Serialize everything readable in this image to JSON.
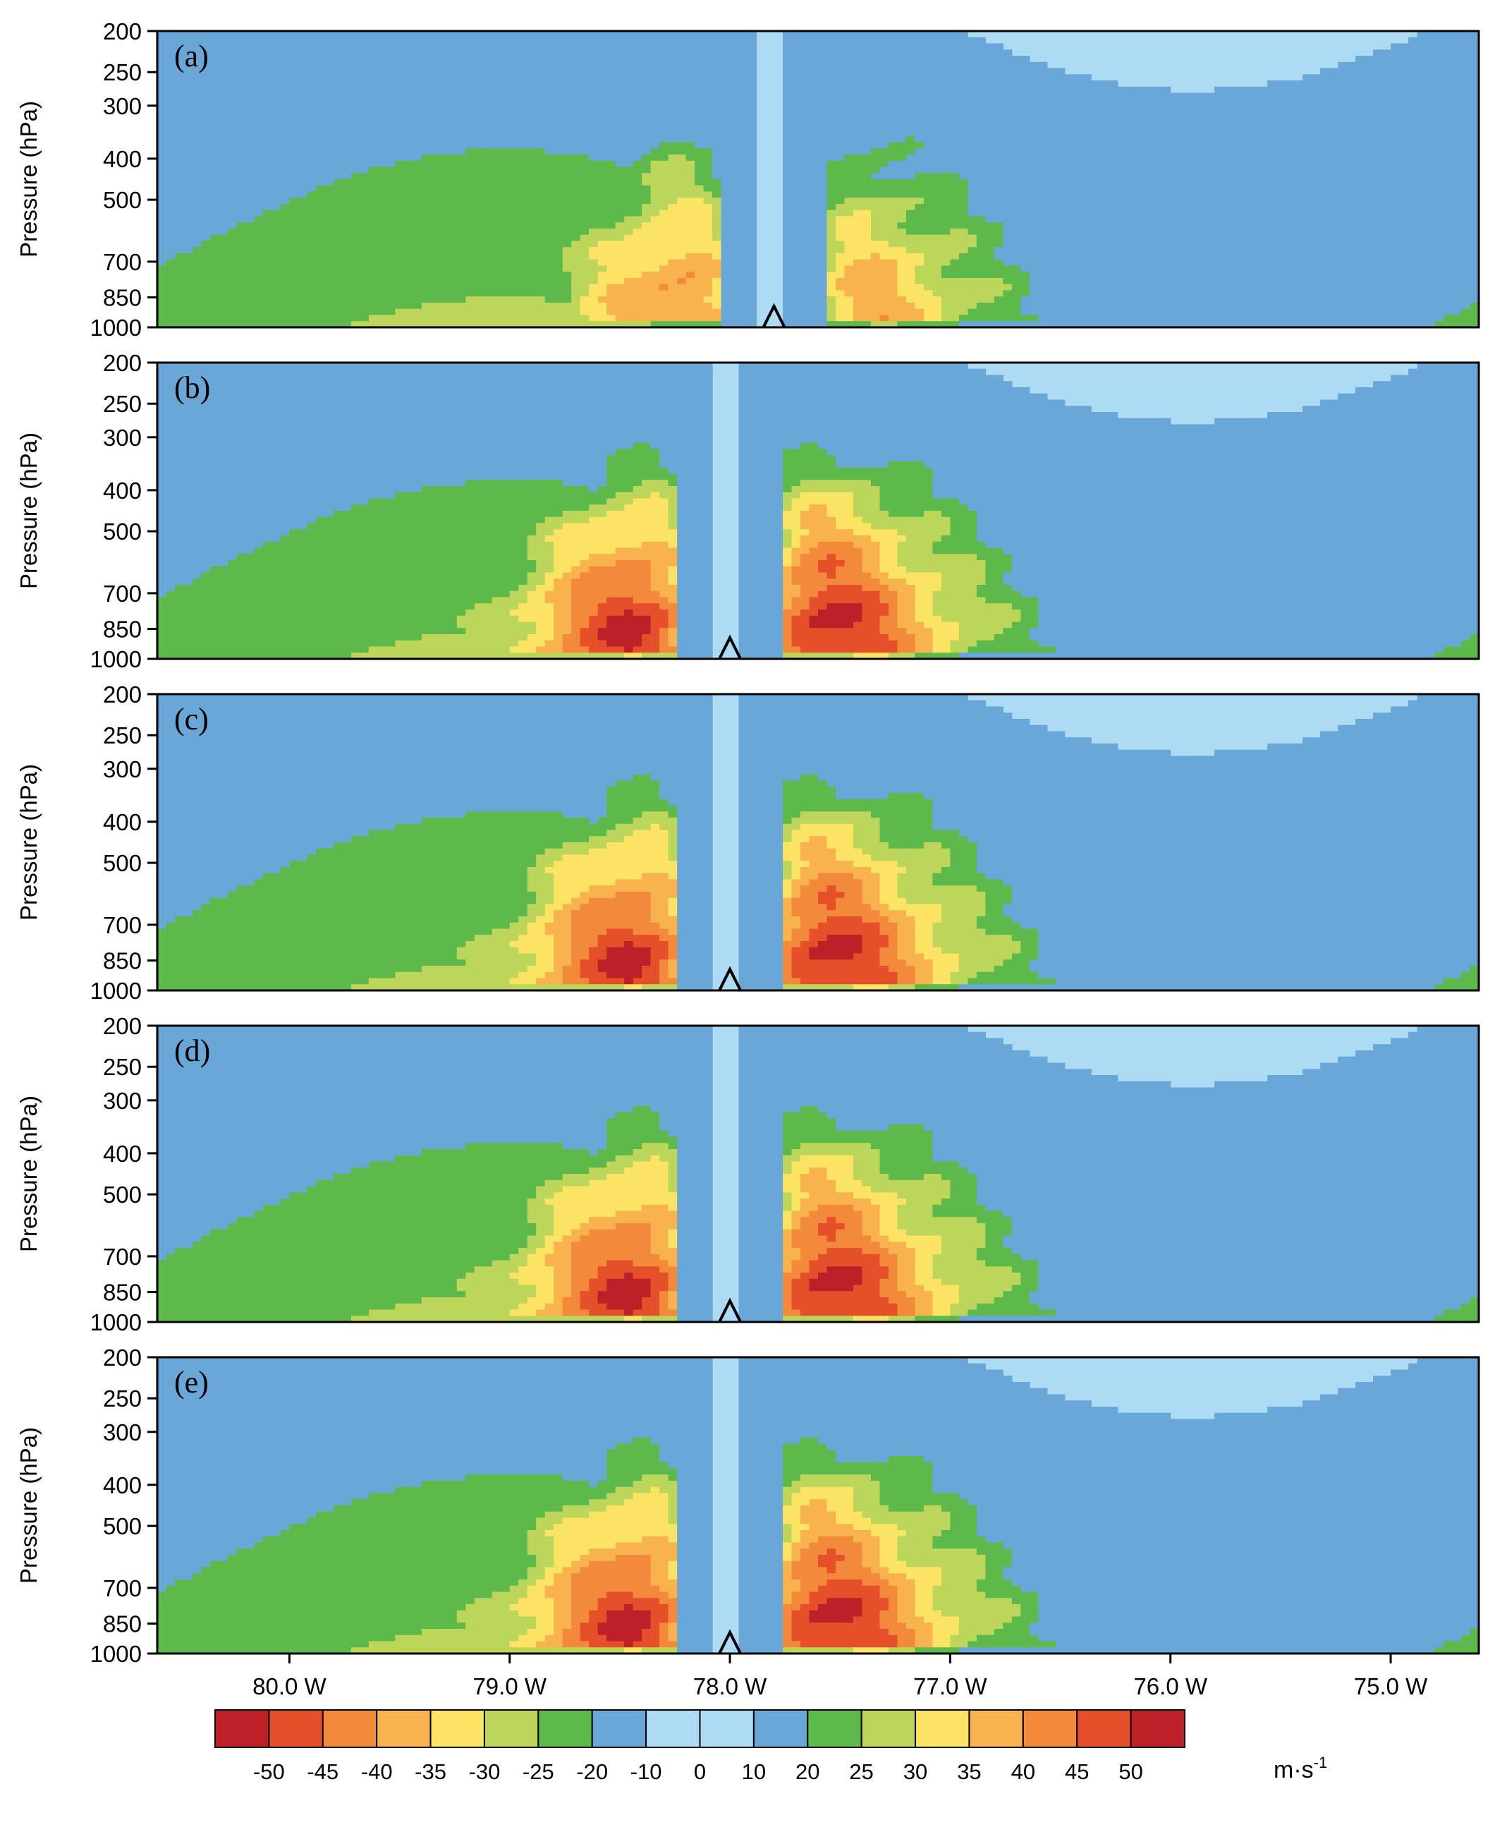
{
  "chart_data": {
    "type": "heatmap",
    "description_units": "m·s⁻¹",
    "ylabel": "Pressure (hPa)",
    "yticks": [
      200,
      250,
      300,
      400,
      500,
      700,
      850,
      1000
    ],
    "ylim": [
      1000,
      200
    ],
    "xlim": [
      80.6,
      74.6
    ],
    "xticks": [
      80.0,
      79.0,
      78.0,
      77.0,
      76.0,
      75.0
    ],
    "xtick_labels": [
      "80.0 W",
      "79.0 W",
      "78.0 W",
      "77.0 W",
      "76.0 W",
      "75.0 W"
    ],
    "colorbar": {
      "unit_label": "m·s",
      "unit_exponent": "-1",
      "tick_labels": [
        "-50",
        "-45",
        "-40",
        "-35",
        "-30",
        "-25",
        "-20",
        "-10",
        "0",
        "10",
        "20",
        "25",
        "30",
        "35",
        "40",
        "45",
        "50"
      ],
      "colors": [
        "#bd2026",
        "#e5502a",
        "#f3893a",
        "#f8b24e",
        "#fbe463",
        "#bcd65b",
        "#5cb94a",
        "#69a7d9",
        "#acdbf3",
        "#acdbf3",
        "#69a7d9",
        "#5cb94a",
        "#bcd65b",
        "#fbe463",
        "#f8b24e",
        "#f3893a",
        "#e5502a",
        "#bd2026"
      ]
    },
    "panels": [
      {
        "label": "(a)",
        "center_lon": 77.8,
        "left_max": 40,
        "right_max": 35,
        "core_pressure": 850
      },
      {
        "label": "(b)",
        "center_lon": 78.0,
        "left_max": 50,
        "right_max": 50,
        "core_pressure": 850
      },
      {
        "label": "(c)",
        "center_lon": 78.0,
        "left_max": 50,
        "right_max": 50,
        "core_pressure": 850
      },
      {
        "label": "(d)",
        "center_lon": 78.0,
        "left_max": 50,
        "right_max": 50,
        "core_pressure": 850
      },
      {
        "label": "(e)",
        "center_lon": 78.0,
        "left_max": 50,
        "right_max": 50,
        "core_pressure": 850
      }
    ]
  }
}
